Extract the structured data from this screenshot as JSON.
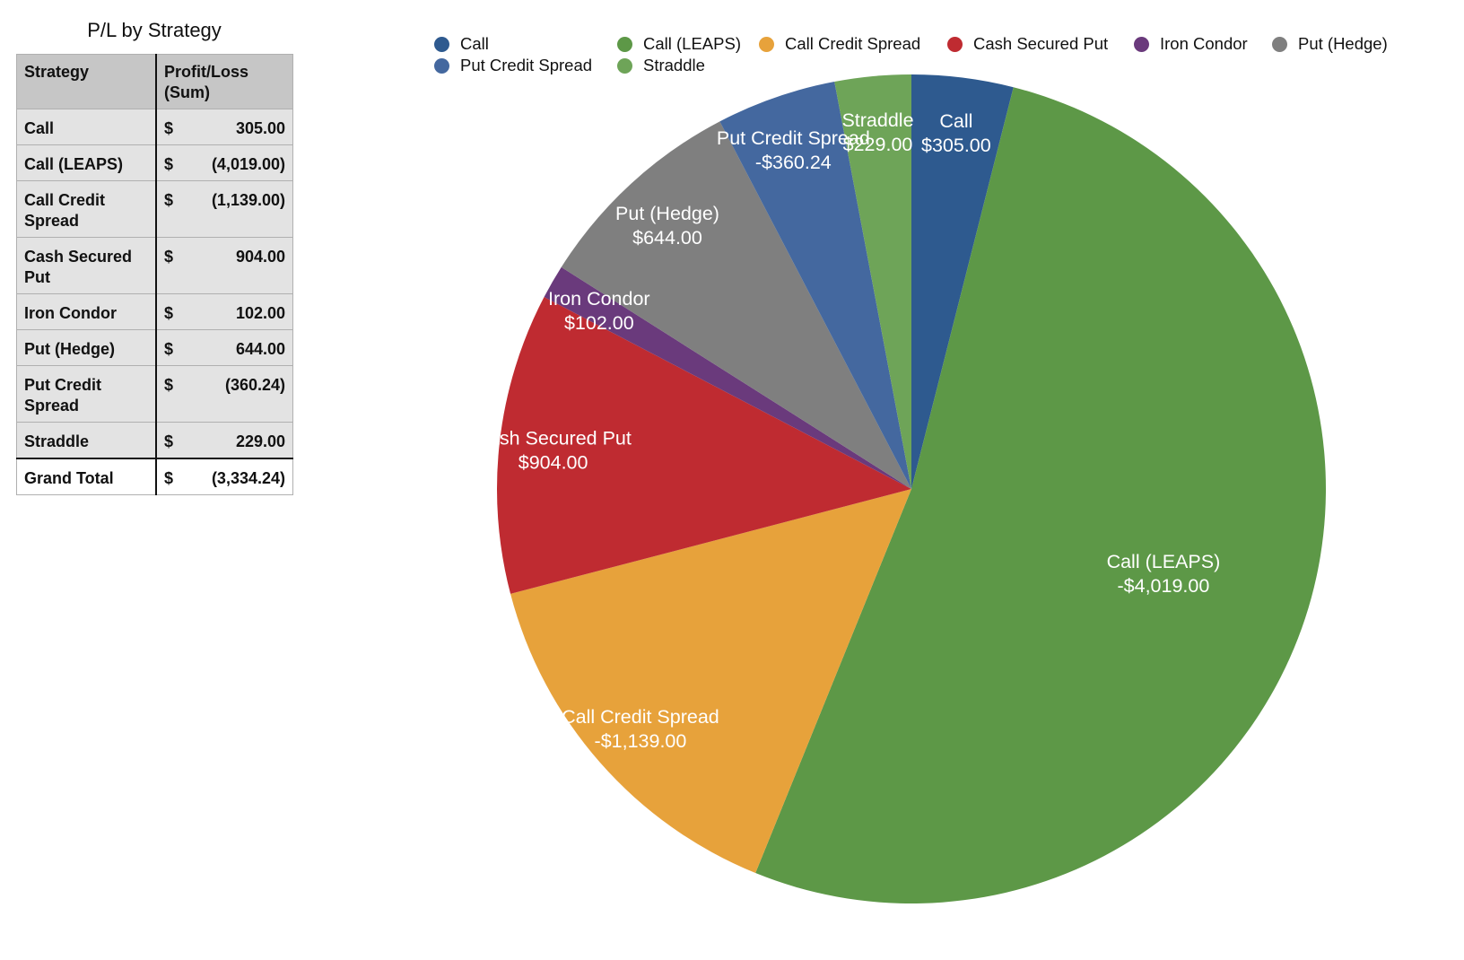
{
  "table": {
    "title": "P/L by Strategy",
    "header_strategy": "Strategy",
    "header_pl": "Profit/Loss (Sum)",
    "rows": [
      {
        "strategy": "Call",
        "currency": "$",
        "value": "305.00"
      },
      {
        "strategy": "Call (LEAPS)",
        "currency": "$",
        "value": "(4,019.00)"
      },
      {
        "strategy": "Call Credit Spread",
        "currency": "$",
        "value": "(1,139.00)"
      },
      {
        "strategy": "Cash Secured Put",
        "currency": "$",
        "value": "904.00"
      },
      {
        "strategy": "Iron Condor",
        "currency": "$",
        "value": "102.00"
      },
      {
        "strategy": "Put (Hedge)",
        "currency": "$",
        "value": "644.00"
      },
      {
        "strategy": "Put Credit Spread",
        "currency": "$",
        "value": "(360.24)"
      },
      {
        "strategy": "Straddle",
        "currency": "$",
        "value": "229.00"
      }
    ],
    "total": {
      "label": "Grand Total",
      "currency": "$",
      "value": "(3,334.24)"
    }
  },
  "chart_data": {
    "type": "pie",
    "title": "",
    "legend_position": "top",
    "categories": [
      "Call",
      "Call (LEAPS)",
      "Call Credit Spread",
      "Cash Secured Put",
      "Iron Condor",
      "Put (Hedge)",
      "Put Credit Spread",
      "Straddle"
    ],
    "values": [
      305.0,
      -4019.0,
      -1139.0,
      904.0,
      102.0,
      644.0,
      -360.24,
      229.0
    ],
    "labels": [
      "$305.00",
      "-$4,019.00",
      "-$1,139.00",
      "$904.00",
      "$102.00",
      "$644.00",
      "-$360.24",
      "$229.00"
    ],
    "colors": [
      "#2e5a8f",
      "#5d9847",
      "#e7a23b",
      "#bf2b31",
      "#6a3a7c",
      "#7f7f7f",
      "#44689f",
      "#6ea458"
    ]
  }
}
